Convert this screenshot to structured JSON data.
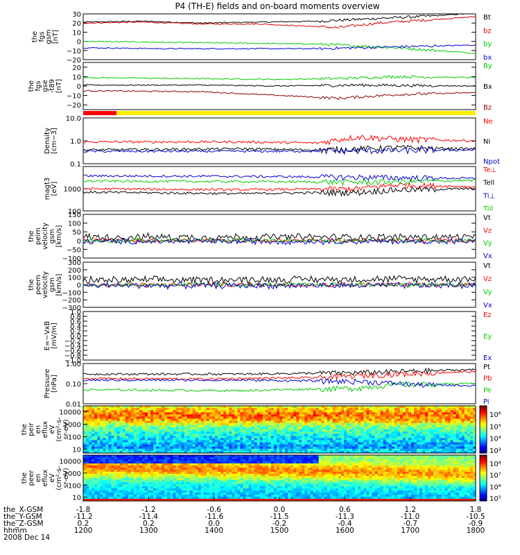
{
  "chart_data": {
    "type": "line",
    "title": "P4 (TH-E) fields and on-board moments overview",
    "date_label": "2008 Dec 14",
    "x_axis": {
      "hhmm": [
        "1200",
        "1300",
        "1400",
        "1500",
        "1600",
        "1700",
        "1800"
      ],
      "rows": [
        {
          "label": "the_X-GSM",
          "values": [
            "-1.8",
            "-1.2",
            "-0.6",
            "0.0",
            "0.6",
            "1.2",
            "1.8"
          ]
        },
        {
          "label": "the_Y-GSM",
          "values": [
            "-11.2",
            "-11.4",
            "-11.6",
            "-11.5",
            "-11.3",
            "-11.0",
            "-10.5"
          ]
        },
        {
          "label": "the_Z-GSM",
          "values": [
            "0.2",
            "0.2",
            "0.0",
            "-0.2",
            "-0.4",
            "-0.7",
            "-0.9"
          ]
        },
        {
          "label": "hhmm",
          "values": [
            "1200",
            "1300",
            "1400",
            "1500",
            "1600",
            "1700",
            "1800"
          ]
        }
      ]
    },
    "panels": [
      {
        "id": "fgs_gsm",
        "ylabel": [
          "the",
          "fgs",
          "gsm",
          "[nT]"
        ],
        "scale": "linear",
        "ylim": [
          -20,
          30
        ],
        "ticks": [
          "30",
          "20",
          "10",
          "0",
          "−10",
          "−20"
        ],
        "series": [
          {
            "name": "Bt",
            "color": "#000000",
            "points": [
              [
                0,
                21
              ],
              [
                0.15,
                22
              ],
              [
                0.3,
                20
              ],
              [
                0.45,
                21
              ],
              [
                0.6,
                22
              ],
              [
                0.75,
                25
              ],
              [
                0.9,
                28
              ],
              [
                1,
                31
              ]
            ]
          },
          {
            "name": "bz",
            "color": "#dd0000",
            "points": [
              [
                0,
                20
              ],
              [
                0.15,
                21
              ],
              [
                0.3,
                19
              ],
              [
                0.45,
                19
              ],
              [
                0.55,
                17
              ],
              [
                0.65,
                15
              ],
              [
                0.75,
                20
              ],
              [
                0.9,
                24
              ],
              [
                1,
                27
              ]
            ]
          },
          {
            "name": "by",
            "color": "#00cc00",
            "points": [
              [
                0,
                0
              ],
              [
                0.2,
                -1
              ],
              [
                0.4,
                -2
              ],
              [
                0.6,
                -3
              ],
              [
                0.8,
                -7
              ],
              [
                0.9,
                -10
              ],
              [
                1,
                -13
              ]
            ]
          },
          {
            "name": "bx",
            "color": "#0000cc",
            "points": [
              [
                0,
                -7
              ],
              [
                0.2,
                -8
              ],
              [
                0.4,
                -8
              ],
              [
                0.6,
                -8
              ],
              [
                0.8,
                -6
              ],
              [
                1,
                -4
              ]
            ]
          }
        ]
      },
      {
        "id": "fgs_gse",
        "ylabel": [
          "the",
          "fgs",
          "gse",
          "-t89",
          "[nT]"
        ],
        "scale": "linear",
        "ylim": [
          -25,
          25
        ],
        "ticks": [
          "20",
          "10",
          "0",
          "−10",
          "−20"
        ],
        "series": [
          {
            "name": "By",
            "color": "#00cc00",
            "points": [
              [
                0,
                9
              ],
              [
                0.25,
                8
              ],
              [
                0.5,
                7
              ],
              [
                0.65,
                8
              ],
              [
                0.8,
                10
              ],
              [
                1,
                9
              ]
            ]
          },
          {
            "name": "Bx",
            "color": "#000000",
            "points": [
              [
                0,
                1
              ],
              [
                0.3,
                1
              ],
              [
                0.5,
                0
              ],
              [
                0.7,
                1
              ],
              [
                1,
                0
              ]
            ]
          },
          {
            "name": "Bz",
            "color": "#8b0000",
            "points": [
              [
                0,
                -5
              ],
              [
                0.3,
                -6
              ],
              [
                0.5,
                -10
              ],
              [
                0.65,
                -13
              ],
              [
                0.8,
                -9
              ],
              [
                1,
                -7
              ]
            ]
          }
        ]
      },
      {
        "id": "density",
        "ylabel": [
          "Density",
          "[cm−3]"
        ],
        "scale": "log",
        "ylim": [
          0.1,
          10
        ],
        "ticks": [
          "10.0",
          "1.0",
          "0.1"
        ],
        "series": [
          {
            "name": "Ne",
            "color": "#ff0000",
            "points": [
              [
                0,
                0.9
              ],
              [
                0.4,
                0.9
              ],
              [
                0.6,
                0.8
              ],
              [
                0.7,
                1.5
              ],
              [
                0.8,
                1.2
              ],
              [
                1,
                1.0
              ]
            ]
          },
          {
            "name": "Ni",
            "color": "#000000",
            "points": [
              [
                0,
                0.4
              ],
              [
                0.4,
                0.45
              ],
              [
                0.6,
                0.4
              ],
              [
                0.8,
                0.5
              ],
              [
                1,
                0.45
              ]
            ]
          },
          {
            "name": "Npot",
            "color": "#0000cc",
            "points": [
              [
                0,
                0.35
              ],
              [
                0.5,
                0.35
              ],
              [
                0.8,
                0.38
              ],
              [
                1,
                0.4
              ]
            ]
          }
        ]
      },
      {
        "id": "magt3",
        "ylabel": [
          "magt3",
          "[eV]"
        ],
        "scale": "log",
        "ylim": [
          100,
          10000
        ],
        "ticks": [
          "1000",
          "100"
        ],
        "series": [
          {
            "name": "Te⊥",
            "color": "#ff0000",
            "points": [
              [
                0,
                1000
              ],
              [
                0.4,
                900
              ],
              [
                0.7,
                1000
              ],
              [
                0.8,
                1500
              ],
              [
                1,
                1200
              ]
            ]
          },
          {
            "name": "Te‖",
            "color": "#000000",
            "points": [
              [
                0,
                700
              ],
              [
                0.4,
                600
              ],
              [
                0.7,
                700
              ],
              [
                0.8,
                900
              ],
              [
                1,
                1000
              ]
            ]
          },
          {
            "name": "Ti⊥",
            "color": "#0000cc",
            "points": [
              [
                0,
                3800
              ],
              [
                0.4,
                3600
              ],
              [
                0.7,
                3300
              ],
              [
                0.9,
                3000
              ],
              [
                1,
                2900
              ]
            ]
          },
          {
            "name": "Ti‖",
            "color": "#00cc00",
            "points": [
              [
                0,
                2200
              ],
              [
                0.4,
                2100
              ],
              [
                0.7,
                2000
              ],
              [
                0.9,
                2200
              ],
              [
                1,
                2400
              ]
            ]
          }
        ],
        "legend_labels": [
          "Te⊥",
          "Tell",
          "Ti⊥",
          "Till"
        ]
      },
      {
        "id": "peim_velocity",
        "ylabel": [
          "the",
          "peim",
          "velocity",
          "gsm",
          "[km/s]"
        ],
        "scale": "linear",
        "ylim": [
          -100,
          150
        ],
        "ticks": [
          "150",
          "100",
          "50",
          "0",
          "−50",
          "−100"
        ],
        "series": [
          {
            "name": "Vt",
            "color": "#000000",
            "noise": 25,
            "base": [
              [
                0,
                20
              ],
              [
                1,
                20
              ]
            ]
          },
          {
            "name": "Vz",
            "color": "#ff0000",
            "noise": 15,
            "base": [
              [
                0,
                0
              ],
              [
                1,
                0
              ]
            ]
          },
          {
            "name": "Vy",
            "color": "#00cc00",
            "noise": 15,
            "base": [
              [
                0,
                0
              ],
              [
                1,
                0
              ]
            ]
          },
          {
            "name": "Vx",
            "color": "#0000cc",
            "noise": 20,
            "base": [
              [
                0,
                -5
              ],
              [
                1,
                -5
              ]
            ]
          }
        ]
      },
      {
        "id": "peem_velocity",
        "ylabel": [
          "the",
          "peem",
          "velocity",
          "gsm",
          "[km/s]"
        ],
        "scale": "linear",
        "ylim": [
          -300,
          300
        ],
        "ticks": [
          "300",
          "200",
          "100",
          "0",
          "−100",
          "−200",
          "−300"
        ],
        "series": [
          {
            "name": "Vt",
            "color": "#000000",
            "noise": 60,
            "base": [
              [
                0,
                60
              ],
              [
                1,
                80
              ]
            ]
          },
          {
            "name": "Vz",
            "color": "#ff0000",
            "noise": 40,
            "base": [
              [
                0,
                0
              ],
              [
                1,
                0
              ]
            ]
          },
          {
            "name": "Vy",
            "color": "#00cc00",
            "noise": 35,
            "base": [
              [
                0,
                0
              ],
              [
                1,
                0
              ]
            ]
          },
          {
            "name": "Vx",
            "color": "#0000cc",
            "noise": 50,
            "base": [
              [
                0,
                -10
              ],
              [
                1,
                -10
              ]
            ]
          }
        ]
      },
      {
        "id": "efield",
        "ylabel": [
          "E=−VxB",
          "[mV/m]"
        ],
        "scale": "linear",
        "ylim": [
          -1,
          1
        ],
        "ticks": [
          "1.0",
          "0.8",
          "0.6",
          "0.4",
          "0.2",
          "0.0",
          "−0.2",
          "−0.4",
          "−0.6",
          "−0.8",
          "−1.0"
        ],
        "series": [
          {
            "name": "Ez",
            "color": "#ff0000",
            "points": []
          },
          {
            "name": "Ey",
            "color": "#00cc00",
            "points": []
          },
          {
            "name": "Ex",
            "color": "#0000cc",
            "points": []
          }
        ]
      },
      {
        "id": "pressure",
        "ylabel": [
          "Pressure",
          "[nPa]"
        ],
        "scale": "log",
        "ylim": [
          0.01,
          1
        ],
        "ticks": [
          "1.00",
          "0.10",
          "0.01"
        ],
        "series": [
          {
            "name": "Pt",
            "color": "#000000",
            "points": [
              [
                0,
                0.3
              ],
              [
                0.4,
                0.3
              ],
              [
                0.7,
                0.35
              ],
              [
                1,
                0.5
              ]
            ]
          },
          {
            "name": "Pb",
            "color": "#ff0000",
            "points": [
              [
                0,
                0.18
              ],
              [
                0.3,
                0.17
              ],
              [
                0.6,
                0.2
              ],
              [
                0.8,
                0.3
              ],
              [
                1,
                0.4
              ]
            ]
          },
          {
            "name": "Pe",
            "color": "#00cc00",
            "points": [
              [
                0,
                0.05
              ],
              [
                0.4,
                0.045
              ],
              [
                0.7,
                0.06
              ],
              [
                0.8,
                0.09
              ],
              [
                1,
                0.1
              ]
            ]
          },
          {
            "name": "Pi",
            "color": "#0000cc",
            "points": [
              [
                0,
                0.15
              ],
              [
                0.4,
                0.15
              ],
              [
                0.7,
                0.13
              ],
              [
                0.85,
                0.09
              ],
              [
                1,
                0.08
              ]
            ]
          }
        ]
      }
    ],
    "spectrograms": [
      {
        "id": "peir_eflux",
        "ylabel": [
          "the",
          "peir",
          "en",
          "eflux",
          "eV",
          "(cm²-s-",
          "sr-eV)"
        ],
        "scale": "log",
        "ylim": [
          5,
          30000
        ],
        "ticks": [
          "10000",
          "1000",
          "100",
          "10"
        ],
        "colorbar_ticks": [
          "10⁶",
          "10⁵",
          "10⁴",
          "10³"
        ]
      },
      {
        "id": "peer_eflux",
        "ylabel": [
          "the",
          "peer",
          "en",
          "eflux",
          "eV",
          "(cm²-s-",
          "sr-eV)"
        ],
        "scale": "log",
        "ylim": [
          5,
          30000
        ],
        "ticks": [
          "10000",
          "1000",
          "100",
          "10"
        ],
        "colorbar_ticks": [
          "10⁸",
          "10⁷",
          "10⁶",
          "10⁵"
        ]
      }
    ]
  }
}
